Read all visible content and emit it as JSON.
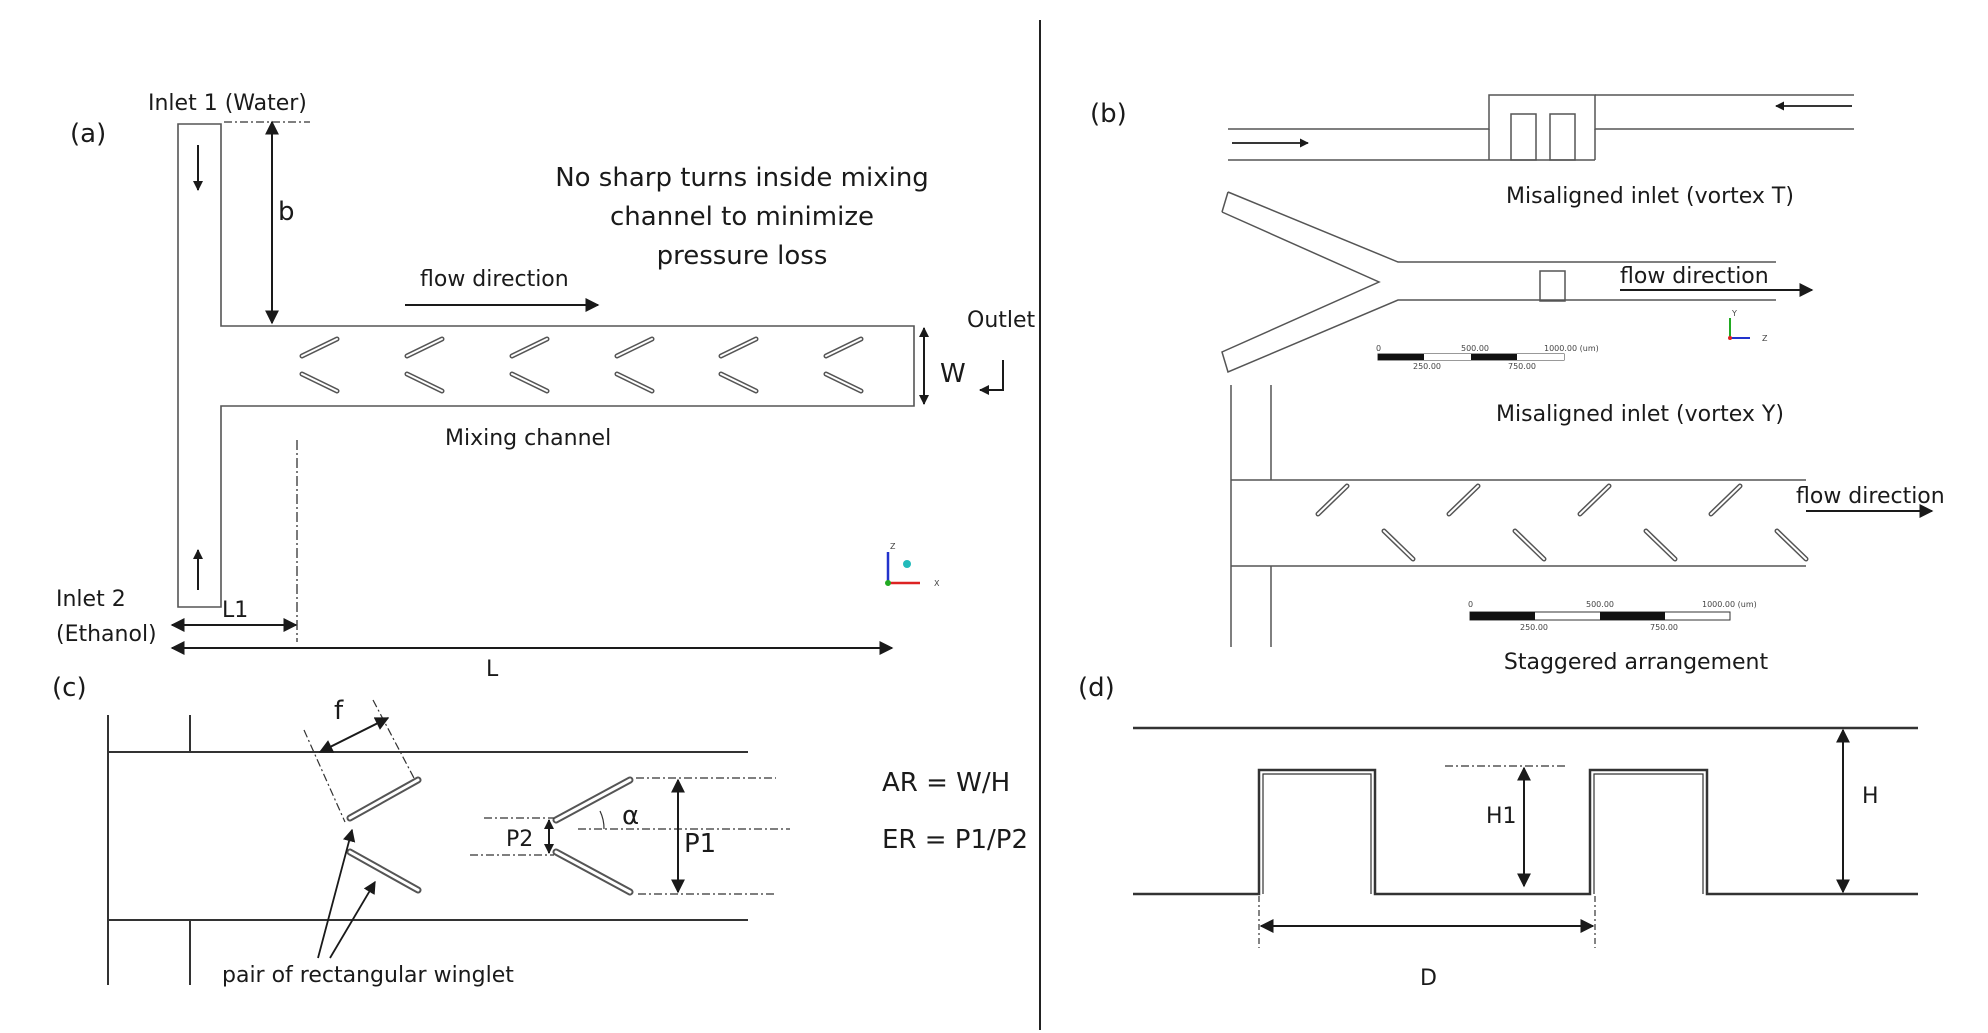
{
  "panels": {
    "a": {
      "label": "(a)",
      "inlet1": "Inlet 1 (Water)",
      "inlet2_line1": "Inlet 2",
      "inlet2_line2": "(Ethanol)",
      "dim_b": "b",
      "note_line1": "No sharp turns inside mixing",
      "note_line2": "channel to minimize",
      "note_line3": "pressure loss",
      "flow_direction": "flow direction",
      "outlet": "Outlet",
      "dim_w": "W",
      "mixing_channel": "Mixing channel",
      "dim_l1": "L1",
      "dim_l": "L",
      "axis_z": "Z",
      "axis_x": "X"
    },
    "b": {
      "label": "(b)",
      "caption_vortex_t": "Misaligned inlet (vortex T)",
      "flow_direction_1": "flow direction",
      "caption_vortex_y": "Misaligned inlet (vortex Y)",
      "flow_direction_2": "flow direction",
      "caption_staggered": "Staggered arrangement",
      "scale1": {
        "t0": "0",
        "t500": "500.00",
        "t1000": "1000.00 (um)",
        "t250": "250.00",
        "t750": "750.00"
      },
      "scale2": {
        "t0": "0",
        "t500": "500.00",
        "t1000": "1000.00 (um)",
        "t250": "250.00",
        "t750": "750.00"
      },
      "axis_y": "Y",
      "axis_z": "Z"
    },
    "c": {
      "label": "(c)",
      "dim_f": "f",
      "dim_p2": "P2",
      "dim_p1": "P1",
      "alpha": "α",
      "ar": "AR = W/H",
      "er": "ER = P1/P2",
      "winglet_caption": "pair of rectangular winglet"
    },
    "d": {
      "label": "(d)",
      "dim_h1": "H1",
      "dim_h": "H",
      "dim_d": "D"
    }
  },
  "colors": {
    "line": "#3a3a3a",
    "text": "#1a1a1a",
    "axis_z": "#2233cc",
    "axis_x": "#dd2222",
    "axis_y": "#22aa22",
    "axis_dot": "#22bbbb"
  }
}
